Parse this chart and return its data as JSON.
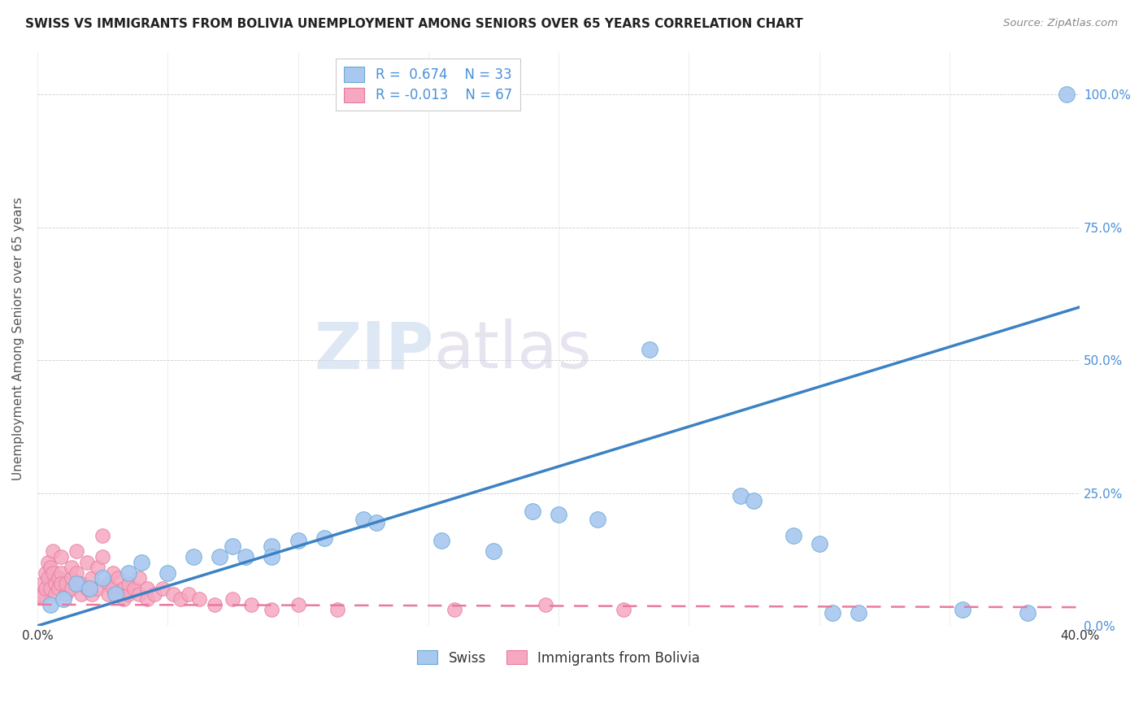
{
  "title": "SWISS VS IMMIGRANTS FROM BOLIVIA UNEMPLOYMENT AMONG SENIORS OVER 65 YEARS CORRELATION CHART",
  "source": "Source: ZipAtlas.com",
  "ylabel": "Unemployment Among Seniors over 65 years",
  "xlim": [
    0.0,
    0.4
  ],
  "ylim": [
    0.0,
    1.08
  ],
  "ytick_values": [
    0.0,
    0.25,
    0.5,
    0.75,
    1.0
  ],
  "xtick_values": [
    0.0,
    0.05,
    0.1,
    0.15,
    0.2,
    0.25,
    0.3,
    0.35,
    0.4
  ],
  "swiss_color": "#a8c8f0",
  "swiss_edge_color": "#6aaad4",
  "bolivia_color": "#f5a8c0",
  "bolivia_edge_color": "#e87aa0",
  "trendline_swiss_color": "#3b82c4",
  "trendline_bolivia_color": "#e87aa0",
  "swiss_trendline": [
    [
      0.0,
      0.0
    ],
    [
      0.4,
      0.6
    ]
  ],
  "bolivia_trendline": [
    [
      0.0,
      0.04
    ],
    [
      0.4,
      0.035
    ]
  ],
  "swiss_points": [
    [
      0.005,
      0.04
    ],
    [
      0.01,
      0.05
    ],
    [
      0.015,
      0.08
    ],
    [
      0.02,
      0.07
    ],
    [
      0.025,
      0.09
    ],
    [
      0.03,
      0.06
    ],
    [
      0.035,
      0.1
    ],
    [
      0.04,
      0.12
    ],
    [
      0.05,
      0.1
    ],
    [
      0.06,
      0.13
    ],
    [
      0.07,
      0.13
    ],
    [
      0.075,
      0.15
    ],
    [
      0.08,
      0.13
    ],
    [
      0.09,
      0.15
    ],
    [
      0.09,
      0.13
    ],
    [
      0.1,
      0.16
    ],
    [
      0.11,
      0.165
    ],
    [
      0.125,
      0.2
    ],
    [
      0.13,
      0.195
    ],
    [
      0.155,
      0.16
    ],
    [
      0.175,
      0.14
    ],
    [
      0.19,
      0.215
    ],
    [
      0.2,
      0.21
    ],
    [
      0.215,
      0.2
    ],
    [
      0.235,
      0.52
    ],
    [
      0.27,
      0.245
    ],
    [
      0.275,
      0.235
    ],
    [
      0.29,
      0.17
    ],
    [
      0.3,
      0.155
    ],
    [
      0.305,
      0.025
    ],
    [
      0.315,
      0.025
    ],
    [
      0.355,
      0.03
    ],
    [
      0.38,
      0.025
    ],
    [
      0.395,
      1.0
    ]
  ],
  "bolivia_points": [
    [
      0.0,
      0.055
    ],
    [
      0.001,
      0.06
    ],
    [
      0.002,
      0.08
    ],
    [
      0.002,
      0.055
    ],
    [
      0.003,
      0.1
    ],
    [
      0.003,
      0.07
    ],
    [
      0.004,
      0.12
    ],
    [
      0.004,
      0.09
    ],
    [
      0.005,
      0.11
    ],
    [
      0.005,
      0.07
    ],
    [
      0.006,
      0.14
    ],
    [
      0.006,
      0.1
    ],
    [
      0.007,
      0.08
    ],
    [
      0.007,
      0.06
    ],
    [
      0.008,
      0.09
    ],
    [
      0.008,
      0.07
    ],
    [
      0.009,
      0.13
    ],
    [
      0.009,
      0.1
    ],
    [
      0.009,
      0.08
    ],
    [
      0.011,
      0.06
    ],
    [
      0.011,
      0.08
    ],
    [
      0.013,
      0.07
    ],
    [
      0.013,
      0.09
    ],
    [
      0.013,
      0.11
    ],
    [
      0.015,
      0.14
    ],
    [
      0.015,
      0.1
    ],
    [
      0.017,
      0.06
    ],
    [
      0.017,
      0.08
    ],
    [
      0.019,
      0.12
    ],
    [
      0.019,
      0.07
    ],
    [
      0.021,
      0.09
    ],
    [
      0.021,
      0.06
    ],
    [
      0.023,
      0.07
    ],
    [
      0.023,
      0.11
    ],
    [
      0.025,
      0.17
    ],
    [
      0.025,
      0.13
    ],
    [
      0.027,
      0.08
    ],
    [
      0.027,
      0.06
    ],
    [
      0.029,
      0.07
    ],
    [
      0.029,
      0.1
    ],
    [
      0.031,
      0.06
    ],
    [
      0.031,
      0.09
    ],
    [
      0.033,
      0.07
    ],
    [
      0.033,
      0.05
    ],
    [
      0.035,
      0.06
    ],
    [
      0.035,
      0.08
    ],
    [
      0.037,
      0.07
    ],
    [
      0.039,
      0.06
    ],
    [
      0.039,
      0.09
    ],
    [
      0.042,
      0.07
    ],
    [
      0.042,
      0.05
    ],
    [
      0.045,
      0.06
    ],
    [
      0.048,
      0.07
    ],
    [
      0.052,
      0.06
    ],
    [
      0.055,
      0.05
    ],
    [
      0.058,
      0.06
    ],
    [
      0.062,
      0.05
    ],
    [
      0.068,
      0.04
    ],
    [
      0.075,
      0.05
    ],
    [
      0.082,
      0.04
    ],
    [
      0.09,
      0.03
    ],
    [
      0.1,
      0.04
    ],
    [
      0.115,
      0.03
    ],
    [
      0.16,
      0.03
    ],
    [
      0.195,
      0.04
    ],
    [
      0.225,
      0.03
    ]
  ],
  "watermark_zip": "ZIP",
  "watermark_atlas": "atlas",
  "background_color": "#ffffff",
  "grid_color": "#cccccc"
}
